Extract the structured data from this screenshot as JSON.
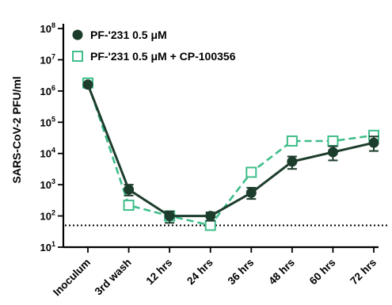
{
  "chart_data": {
    "type": "line",
    "ylabel": "SARS-CoV-2 PFU/ml",
    "y_scale": "log10",
    "ylim": [
      10,
      100000000
    ],
    "y_ticks": [
      {
        "base": "10",
        "exp": "1"
      },
      {
        "base": "10",
        "exp": "2"
      },
      {
        "base": "10",
        "exp": "3"
      },
      {
        "base": "10",
        "exp": "4"
      },
      {
        "base": "10",
        "exp": "5"
      },
      {
        "base": "10",
        "exp": "6"
      },
      {
        "base": "10",
        "exp": "7"
      },
      {
        "base": "10",
        "exp": "8"
      }
    ],
    "categories": [
      "Inoculum",
      "3rd wash",
      "12 hrs",
      "24 hrs",
      "36 hrs",
      "48 hrs",
      "60 hrs",
      "72 hrs"
    ],
    "limit_of_detection": 50,
    "series": [
      {
        "name": "PF-'231 0.5 μM",
        "color": "#1d3d2c",
        "marker": "circle-filled",
        "line_style": "solid",
        "values": [
          1600000,
          700,
          100,
          100,
          550,
          5500,
          11000,
          22000
        ],
        "err_low": [
          null,
          450,
          60,
          70,
          350,
          3200,
          6000,
          12000
        ],
        "err_high": [
          null,
          1000,
          140,
          130,
          800,
          8000,
          17000,
          35000
        ]
      },
      {
        "name": "PF-'231 0.5 μM + CP-100356",
        "color": "#3fbe8a",
        "marker": "square-open",
        "line_style": "dashed",
        "values": [
          1800000,
          220,
          100,
          50,
          2500,
          25000,
          25000,
          38000
        ],
        "err_low": [
          null,
          null,
          null,
          null,
          null,
          null,
          null,
          null
        ],
        "err_high": [
          null,
          null,
          null,
          null,
          null,
          null,
          null,
          null
        ]
      }
    ],
    "legend_position": "top-left",
    "grid": false
  }
}
